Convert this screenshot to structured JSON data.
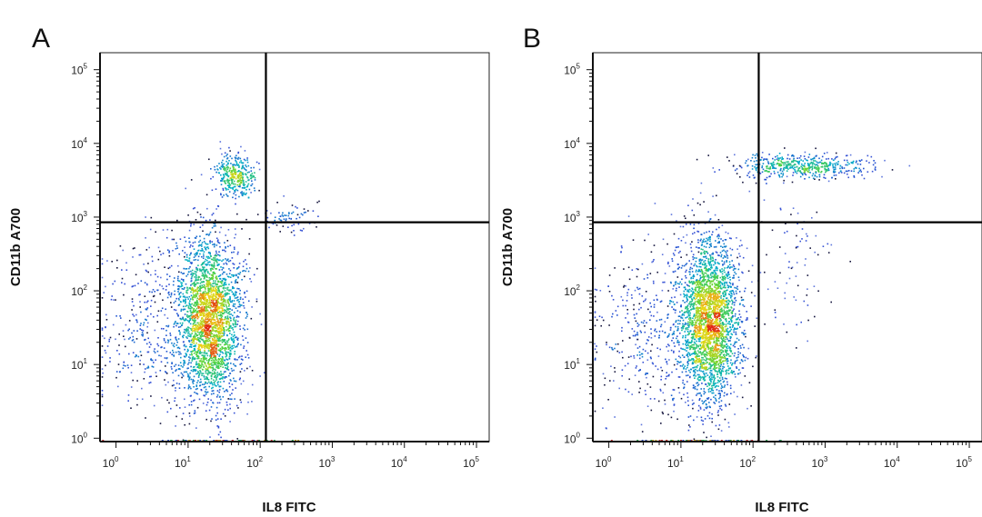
{
  "chart_data": [
    {
      "type": "scatter",
      "panel_label": "A",
      "xlabel": "IL8 FITC",
      "ylabel": "CD11b A700",
      "x_scale": "log",
      "y_scale": "log",
      "xlim": [
        0.6,
        150000
      ],
      "ylim": [
        0.9,
        170000
      ],
      "x_ticks": [
        {
          "value": 1,
          "base": "10",
          "exp": "0"
        },
        {
          "value": 10,
          "base": "10",
          "exp": "1"
        },
        {
          "value": 100,
          "base": "10",
          "exp": "2"
        },
        {
          "value": 1000,
          "base": "10",
          "exp": "3"
        },
        {
          "value": 10000,
          "base": "10",
          "exp": "4"
        },
        {
          "value": 100000,
          "base": "10",
          "exp": "5"
        }
      ],
      "y_ticks": [
        {
          "value": 1,
          "base": "10",
          "exp": "0"
        },
        {
          "value": 10,
          "base": "10",
          "exp": "1"
        },
        {
          "value": 100,
          "base": "10",
          "exp": "2"
        },
        {
          "value": 1000,
          "base": "10",
          "exp": "3"
        },
        {
          "value": 10000,
          "base": "10",
          "exp": "4"
        },
        {
          "value": 100000,
          "base": "10",
          "exp": "5"
        }
      ],
      "quadrant_gate": {
        "x": 120,
        "y": 850
      },
      "populations": [
        {
          "cx": 20,
          "cy": 40,
          "sx": 0.22,
          "sy": 0.55,
          "n": 2600
        },
        {
          "cx": 45,
          "cy": 3800,
          "sx": 0.14,
          "sy": 0.14,
          "n": 350
        },
        {
          "cx": 4,
          "cy": 30,
          "sx": 0.45,
          "sy": 0.6,
          "n": 500
        },
        {
          "cx": 250,
          "cy": 1000,
          "sx": 0.25,
          "sy": 0.12,
          "n": 70
        }
      ]
    },
    {
      "type": "scatter",
      "panel_label": "B",
      "xlabel": "IL8 FITC",
      "ylabel": "CD11b A700",
      "x_scale": "log",
      "y_scale": "log",
      "xlim": [
        0.6,
        150000
      ],
      "ylim": [
        0.9,
        170000
      ],
      "x_ticks": [
        {
          "value": 1,
          "base": "10",
          "exp": "0"
        },
        {
          "value": 10,
          "base": "10",
          "exp": "1"
        },
        {
          "value": 100,
          "base": "10",
          "exp": "2"
        },
        {
          "value": 1000,
          "base": "10",
          "exp": "3"
        },
        {
          "value": 10000,
          "base": "10",
          "exp": "4"
        },
        {
          "value": 100000,
          "base": "10",
          "exp": "5"
        }
      ],
      "y_ticks": [
        {
          "value": 1,
          "base": "10",
          "exp": "0"
        },
        {
          "value": 10,
          "base": "10",
          "exp": "1"
        },
        {
          "value": 100,
          "base": "10",
          "exp": "2"
        },
        {
          "value": 1000,
          "base": "10",
          "exp": "3"
        },
        {
          "value": 10000,
          "base": "10",
          "exp": "4"
        },
        {
          "value": 100000,
          "base": "10",
          "exp": "5"
        }
      ],
      "quadrant_gate": {
        "x": 120,
        "y": 850
      },
      "populations": [
        {
          "cx": 25,
          "cy": 40,
          "sx": 0.2,
          "sy": 0.55,
          "n": 2700
        },
        {
          "cx": 500,
          "cy": 5000,
          "sx": 0.45,
          "sy": 0.09,
          "n": 500
        },
        {
          "cx": 5,
          "cy": 30,
          "sx": 0.45,
          "sy": 0.6,
          "n": 500
        },
        {
          "cx": 300,
          "cy": 300,
          "sx": 0.35,
          "sy": 0.6,
          "n": 90
        }
      ]
    }
  ]
}
